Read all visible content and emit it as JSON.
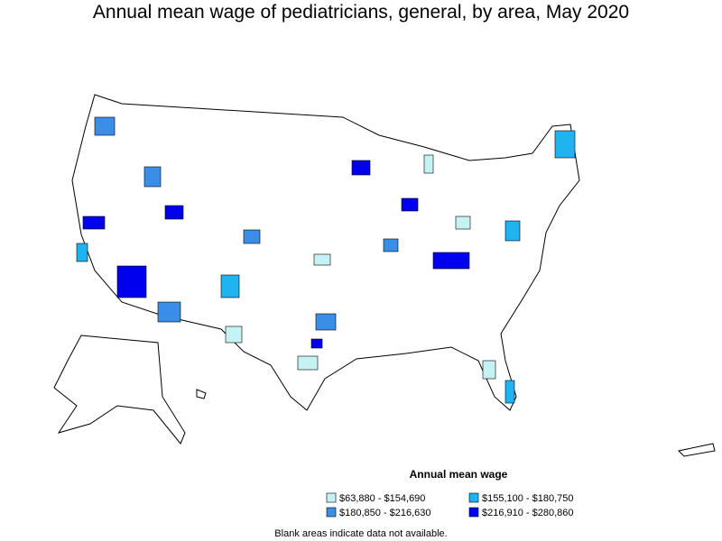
{
  "title": "Annual mean wage of pediatricians, general, by area, May 2020",
  "legend": {
    "title": "Annual mean wage",
    "items": [
      {
        "label": "$63,880 - $154,690",
        "color": "#c5f2f2"
      },
      {
        "label": "$155,100 - $180,750",
        "color": "#1fb4ef"
      },
      {
        "label": "$180,850 - $216,630",
        "color": "#3a8ee6"
      },
      {
        "label": "$216,910 - $280,860",
        "color": "#0000ee"
      }
    ]
  },
  "note": "Blank areas indicate data not available."
}
